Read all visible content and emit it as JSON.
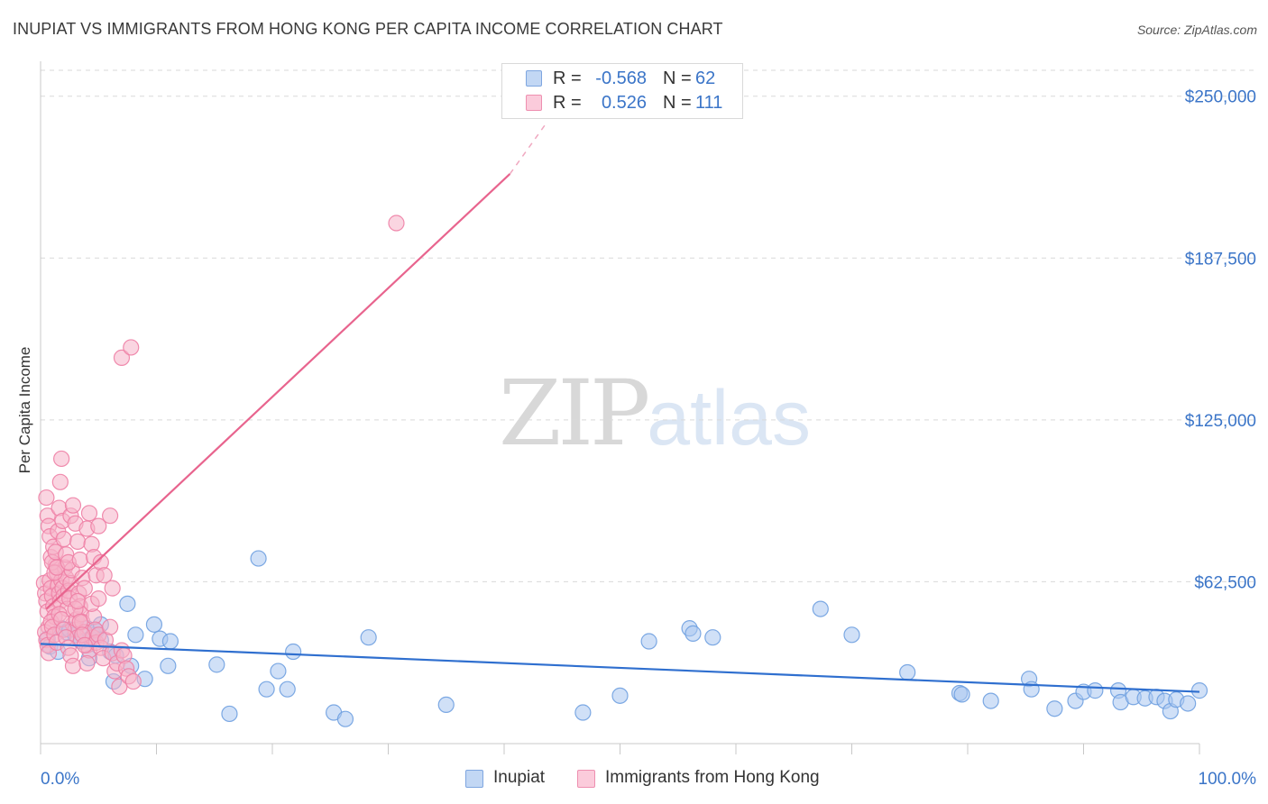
{
  "title": "INUPIAT VS IMMIGRANTS FROM HONG KONG PER CAPITA INCOME CORRELATION CHART",
  "source": "Source: ZipAtlas.com",
  "watermark": {
    "zip": "ZIP",
    "atlas": "atlas"
  },
  "legend": {
    "r_label": "R =",
    "n_label": "N =",
    "rows": [
      {
        "r": "-0.568",
        "n": "62",
        "color": "#a9c7f0"
      },
      {
        "r": "0.526",
        "n": "111",
        "color": "#f5b3c8"
      }
    ]
  },
  "bottom_legend": [
    "Inupiat",
    "Immigrants from Hong Kong"
  ],
  "chart_data": {
    "type": "scatter",
    "title": "INUPIAT VS IMMIGRANTS FROM HONG KONG PER CAPITA INCOME CORRELATION CHART",
    "xlabel": "",
    "ylabel": "Per Capita Income",
    "xlim": [
      0,
      100
    ],
    "ylim": [
      0,
      260000
    ],
    "x_tick_labels": [
      "0.0%",
      "100.0%"
    ],
    "y_ticks": [
      62500,
      125000,
      187500,
      250000
    ],
    "y_tick_labels": [
      "$62,500",
      "$125,000",
      "$187,500",
      "$250,000"
    ],
    "grid": "horizontal dashed",
    "legend_position": "top-center",
    "series": [
      {
        "name": "Inupiat",
        "color": "#6fa0e0",
        "fill": "#a9c7f0",
        "trend": {
          "x": [
            0,
            100
          ],
          "y": [
            38500,
            20000
          ],
          "style": "solid",
          "color": "#2f6fcf"
        },
        "points": [
          [
            0.6,
            40500
          ],
          [
            0.8,
            37500
          ],
          [
            1.5,
            35500
          ],
          [
            1.8,
            44500
          ],
          [
            2.2,
            43000
          ],
          [
            2.5,
            44000
          ],
          [
            3.0,
            42000
          ],
          [
            3.5,
            39500
          ],
          [
            4.0,
            44500
          ],
          [
            4.3,
            40500
          ],
          [
            4.6,
            42000
          ],
          [
            4.8,
            43500
          ],
          [
            4.2,
            33000
          ],
          [
            5.2,
            40000
          ],
          [
            5.2,
            46000
          ],
          [
            6.0,
            35500
          ],
          [
            6.3,
            24000
          ],
          [
            6.5,
            34000
          ],
          [
            7.5,
            54000
          ],
          [
            7.8,
            30000
          ],
          [
            8.2,
            42000
          ],
          [
            9.0,
            25000
          ],
          [
            9.8,
            46000
          ],
          [
            10.3,
            40500
          ],
          [
            11.0,
            30000
          ],
          [
            11.2,
            39500
          ],
          [
            15.2,
            30500
          ],
          [
            16.3,
            11500
          ],
          [
            18.8,
            71500
          ],
          [
            19.5,
            21000
          ],
          [
            20.5,
            28000
          ],
          [
            21.3,
            21000
          ],
          [
            21.8,
            35500
          ],
          [
            25.3,
            12000
          ],
          [
            26.3,
            9500
          ],
          [
            28.3,
            41000
          ],
          [
            35.0,
            15000
          ],
          [
            46.8,
            12000
          ],
          [
            50.0,
            18500
          ],
          [
            52.5,
            39500
          ],
          [
            56.0,
            44500
          ],
          [
            56.3,
            42500
          ],
          [
            58.0,
            41000
          ],
          [
            67.3,
            52000
          ],
          [
            70.0,
            42000
          ],
          [
            74.8,
            27500
          ],
          [
            79.3,
            19500
          ],
          [
            79.5,
            19000
          ],
          [
            82.0,
            16500
          ],
          [
            85.3,
            25000
          ],
          [
            85.5,
            21000
          ],
          [
            87.5,
            13500
          ],
          [
            89.3,
            16500
          ],
          [
            90.0,
            20000
          ],
          [
            91.0,
            20500
          ],
          [
            93.0,
            20500
          ],
          [
            93.2,
            16000
          ],
          [
            94.3,
            18000
          ],
          [
            95.3,
            17500
          ],
          [
            96.3,
            18000
          ],
          [
            97.0,
            16500
          ],
          [
            97.5,
            12500
          ],
          [
            98.0,
            17000
          ],
          [
            99.0,
            15500
          ],
          [
            100.0,
            20500
          ]
        ]
      },
      {
        "name": "Immigrants from Hong Kong",
        "color": "#ee7fa5",
        "fill": "#f5b3c8",
        "trend": {
          "x": [
            0.5,
            40.5,
            43.7
          ],
          "y": [
            52000,
            220000,
            240000
          ],
          "style": "solid-then-dashed",
          "color": "#e8648e"
        },
        "points": [
          [
            0.3,
            62000
          ],
          [
            0.4,
            58000
          ],
          [
            0.5,
            55000
          ],
          [
            0.6,
            51000
          ],
          [
            0.7,
            45000
          ],
          [
            0.8,
            63000
          ],
          [
            0.9,
            60000
          ],
          [
            1.0,
            57000
          ],
          [
            1.1,
            53000
          ],
          [
            1.2,
            49000
          ],
          [
            1.3,
            69000
          ],
          [
            1.4,
            66000
          ],
          [
            1.5,
            61000
          ],
          [
            1.6,
            58000
          ],
          [
            1.7,
            55000
          ],
          [
            1.8,
            63000
          ],
          [
            1.9,
            60000
          ],
          [
            2.0,
            57000
          ],
          [
            2.1,
            68000
          ],
          [
            2.2,
            64000
          ],
          [
            2.3,
            52000
          ],
          [
            2.4,
            59000
          ],
          [
            2.5,
            56000
          ],
          [
            2.6,
            62000
          ],
          [
            2.7,
            67000
          ],
          [
            2.8,
            46000
          ],
          [
            3.0,
            44000
          ],
          [
            3.1,
            48000
          ],
          [
            3.2,
            41000
          ],
          [
            3.3,
            58000
          ],
          [
            3.4,
            53000
          ],
          [
            3.5,
            50000
          ],
          [
            3.6,
            47000
          ],
          [
            3.8,
            43000
          ],
          [
            4.0,
            38000
          ],
          [
            4.2,
            36000
          ],
          [
            4.5,
            41000
          ],
          [
            4.6,
            49000
          ],
          [
            4.7,
            44000
          ],
          [
            4.8,
            39000
          ],
          [
            5.0,
            42000
          ],
          [
            5.2,
            37000
          ],
          [
            5.4,
            33000
          ],
          [
            5.6,
            40000
          ],
          [
            6.0,
            45000
          ],
          [
            6.2,
            35000
          ],
          [
            6.4,
            28000
          ],
          [
            6.6,
            31000
          ],
          [
            6.8,
            22000
          ],
          [
            7.0,
            36000
          ],
          [
            7.2,
            34000
          ],
          [
            7.4,
            29000
          ],
          [
            7.6,
            26000
          ],
          [
            8.0,
            24000
          ],
          [
            0.5,
            95000
          ],
          [
            0.6,
            88000
          ],
          [
            0.7,
            84000
          ],
          [
            0.8,
            80000
          ],
          [
            0.9,
            72000
          ],
          [
            1.0,
            70000
          ],
          [
            1.1,
            76000
          ],
          [
            1.2,
            66000
          ],
          [
            1.3,
            74000
          ],
          [
            1.4,
            68000
          ],
          [
            1.5,
            82000
          ],
          [
            1.6,
            91000
          ],
          [
            1.7,
            101000
          ],
          [
            1.8,
            110000
          ],
          [
            1.9,
            86000
          ],
          [
            2.0,
            79000
          ],
          [
            2.2,
            73000
          ],
          [
            2.4,
            70000
          ],
          [
            2.6,
            88000
          ],
          [
            2.8,
            92000
          ],
          [
            3.0,
            85000
          ],
          [
            3.2,
            78000
          ],
          [
            3.4,
            71000
          ],
          [
            3.6,
            64000
          ],
          [
            3.8,
            60000
          ],
          [
            4.0,
            83000
          ],
          [
            4.2,
            89000
          ],
          [
            4.4,
            77000
          ],
          [
            4.6,
            72000
          ],
          [
            4.8,
            65000
          ],
          [
            5.0,
            84000
          ],
          [
            5.2,
            70000
          ],
          [
            5.5,
            65000
          ],
          [
            6.0,
            88000
          ],
          [
            0.4,
            43000
          ],
          [
            0.5,
            40000
          ],
          [
            0.6,
            38000
          ],
          [
            0.7,
            35000
          ],
          [
            0.9,
            47000
          ],
          [
            1.0,
            45000
          ],
          [
            1.2,
            42000
          ],
          [
            1.4,
            39000
          ],
          [
            1.6,
            50000
          ],
          [
            1.8,
            48000
          ],
          [
            2.0,
            44000
          ],
          [
            2.2,
            41000
          ],
          [
            2.4,
            37000
          ],
          [
            2.6,
            34000
          ],
          [
            2.8,
            30000
          ],
          [
            3.0,
            52000
          ],
          [
            3.2,
            55000
          ],
          [
            3.4,
            47000
          ],
          [
            3.6,
            42000
          ],
          [
            3.8,
            38000
          ],
          [
            4.0,
            31000
          ],
          [
            7.0,
            149000
          ],
          [
            7.8,
            153000
          ],
          [
            30.7,
            201000
          ],
          [
            4.4,
            54000
          ],
          [
            5.0,
            56000
          ],
          [
            6.2,
            60000
          ]
        ]
      }
    ]
  }
}
